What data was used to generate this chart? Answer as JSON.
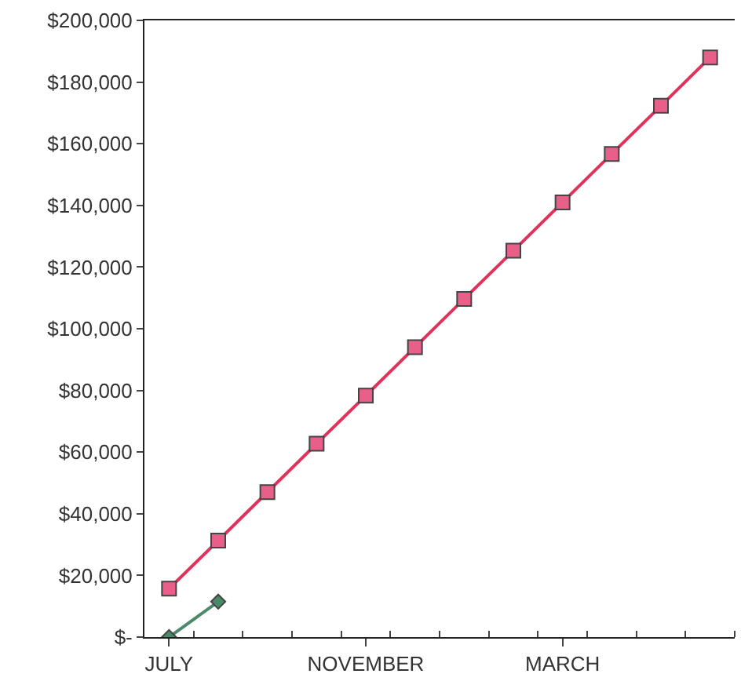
{
  "chart_data": {
    "type": "line",
    "categories": [
      "JULY",
      null,
      null,
      null,
      "NOVEMBER",
      null,
      null,
      null,
      "MARCH",
      null,
      null,
      null
    ],
    "series": [
      {
        "color": "#e0325a",
        "marker": "square",
        "values": [
          15700,
          31300,
          47000,
          62700,
          78300,
          94000,
          109700,
          125300,
          141000,
          156700,
          172300,
          188000
        ]
      },
      {
        "color": "#4a8a6a",
        "marker": "diamond",
        "values": [
          0,
          11500,
          null,
          null,
          null,
          null,
          null,
          null,
          null,
          null,
          null,
          null
        ]
      }
    ],
    "ylim": [
      0,
      200000
    ],
    "yticks": [
      {
        "value": 0,
        "label": "$-"
      },
      {
        "value": 20000,
        "label": "$20,000"
      },
      {
        "value": 40000,
        "label": "$40,000"
      },
      {
        "value": 60000,
        "label": "$60,000"
      },
      {
        "value": 80000,
        "label": "$80,000"
      },
      {
        "value": 100000,
        "label": "$100,000"
      },
      {
        "value": 120000,
        "label": "$120,000"
      },
      {
        "value": 140000,
        "label": "$140,000"
      },
      {
        "value": 160000,
        "label": "$160,000"
      },
      {
        "value": 180000,
        "label": "$180,000"
      },
      {
        "value": 200000,
        "label": "$200,000"
      }
    ],
    "line_style": "solid"
  }
}
